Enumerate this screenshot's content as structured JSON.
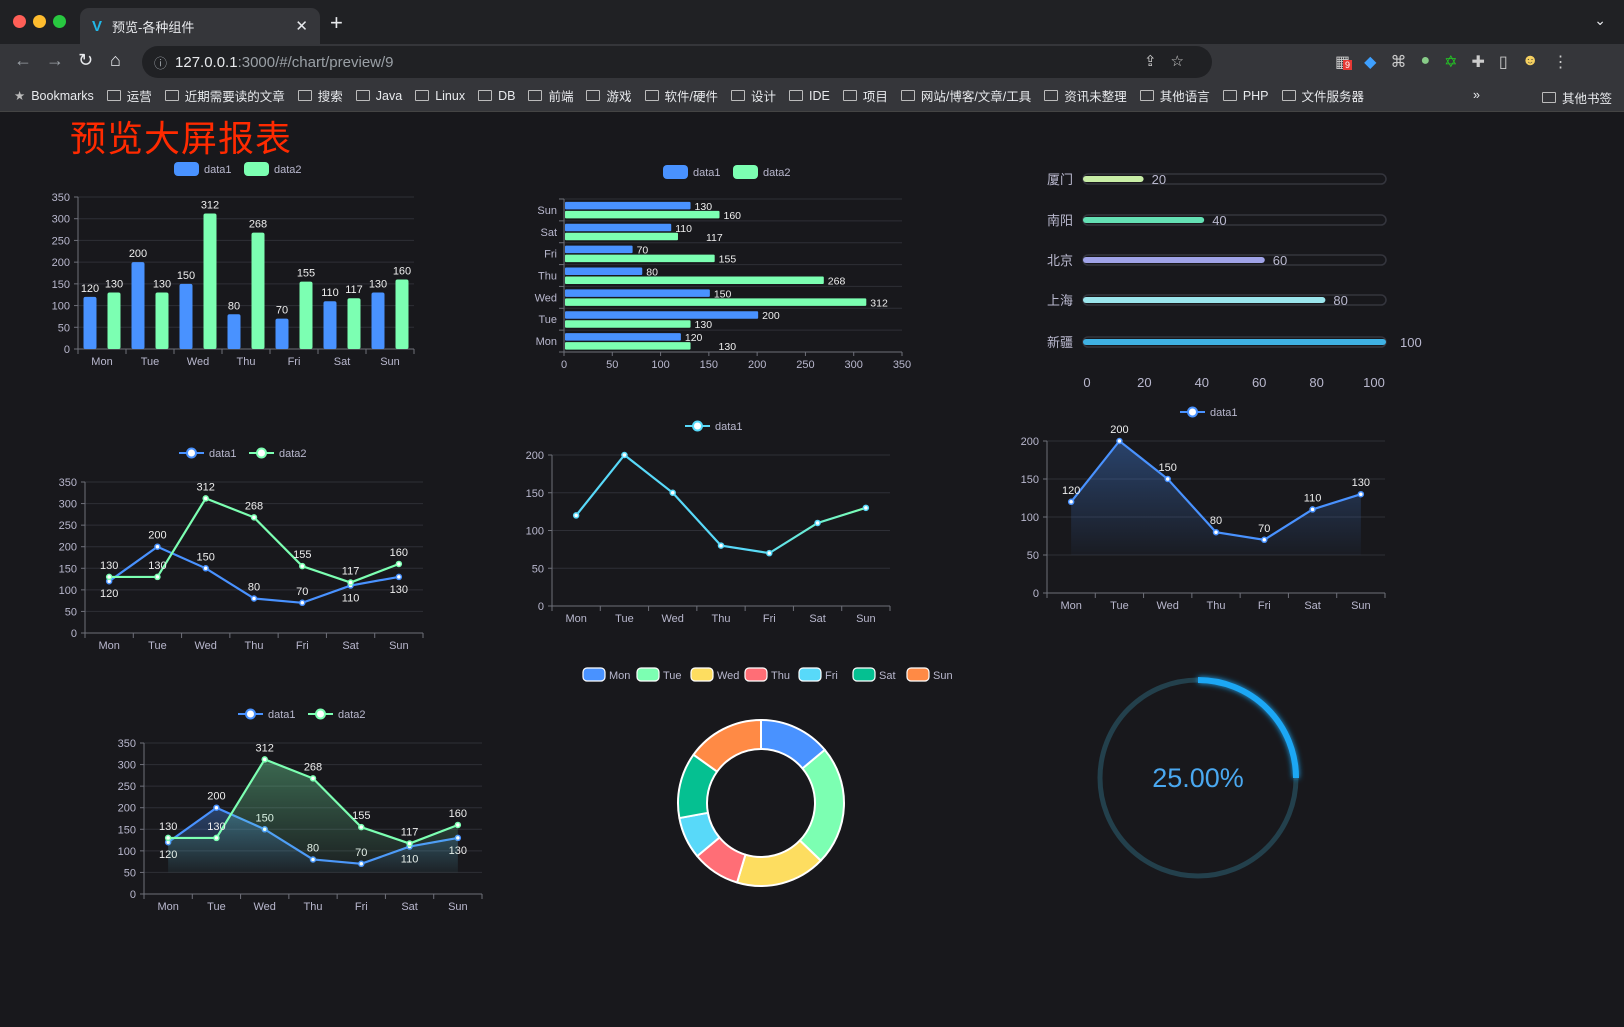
{
  "browser": {
    "tab_title": "预览-各种组件",
    "url_host": "127.0.0.1",
    "url_path": ":3000/#/chart/preview/9",
    "extension_badge": "9",
    "bookmarks": [
      "Bookmarks",
      "运营",
      "近期需要读的文章",
      "搜索",
      "Java",
      "Linux",
      "DB",
      "前端",
      "游戏",
      "软件/硬件",
      "设计",
      "IDE",
      "项目",
      "网站/博客/文章/工具",
      "资讯未整理",
      "其他语言",
      "PHP",
      "文件服务器"
    ],
    "more": "»",
    "other_bookmarks": "其他书签"
  },
  "page": {
    "title": "预览大屏报表",
    "title_color": "#ff2a00",
    "background": "#18181c"
  },
  "chart_data": [
    {
      "type": "bar",
      "categories": [
        "Mon",
        "Tue",
        "Wed",
        "Thu",
        "Fri",
        "Sat",
        "Sun"
      ],
      "ylim": [
        0,
        350
      ],
      "yticks": [
        "0",
        "50",
        "100",
        "150",
        "200",
        "250",
        "300",
        "350"
      ],
      "series": [
        {
          "name": "data1",
          "values": [
            120,
            200,
            150,
            80,
            70,
            110,
            130
          ],
          "color": "#4992ff"
        },
        {
          "name": "data2",
          "values": [
            130,
            130,
            312,
            268,
            155,
            117,
            160
          ],
          "color": "#7cffb2"
        }
      ]
    },
    {
      "type": "bar",
      "orientation": "horizontal",
      "categories": [
        "Mon",
        "Tue",
        "Wed",
        "Thu",
        "Fri",
        "Sat",
        "Sun"
      ],
      "xlim": [
        0,
        350
      ],
      "xticks": [
        "0",
        "50",
        "100",
        "150",
        "200",
        "250",
        "300",
        "350"
      ],
      "series": [
        {
          "name": "data1",
          "values": [
            120,
            200,
            150,
            80,
            70,
            110,
            130
          ],
          "color": "#4992ff"
        },
        {
          "name": "data2",
          "values": [
            130,
            130,
            312,
            268,
            155,
            117,
            160
          ],
          "color": "#7cffb2"
        }
      ]
    },
    {
      "type": "bar",
      "orientation": "horizontal",
      "categories": [
        "厦门",
        "南阳",
        "北京",
        "上海",
        "新疆"
      ],
      "values": [
        20,
        40,
        60,
        80,
        100
      ],
      "xlim": [
        0,
        100
      ],
      "xticks": [
        "0",
        "20",
        "40",
        "60",
        "80",
        "100"
      ],
      "colors": [
        "#c8eda6",
        "#64e0b4",
        "#a0a3e8",
        "#9be5ec",
        "#3fb1e3"
      ]
    },
    {
      "type": "line",
      "categories": [
        "Mon",
        "Tue",
        "Wed",
        "Thu",
        "Fri",
        "Sat",
        "Sun"
      ],
      "ylim": [
        0,
        350
      ],
      "yticks": [
        "0",
        "50",
        "100",
        "150",
        "200",
        "250",
        "300",
        "350"
      ],
      "series": [
        {
          "name": "data1",
          "values": [
            120,
            200,
            150,
            80,
            70,
            110,
            130
          ],
          "color": "#4992ff"
        },
        {
          "name": "data2",
          "values": [
            130,
            130,
            312,
            268,
            155,
            117,
            160
          ],
          "color": "#7cffb2"
        }
      ]
    },
    {
      "type": "line",
      "categories": [
        "Mon",
        "Tue",
        "Wed",
        "Thu",
        "Fri",
        "Sat",
        "Sun"
      ],
      "ylim": [
        0,
        200
      ],
      "yticks": [
        "0",
        "50",
        "100",
        "150",
        "200"
      ],
      "series": [
        {
          "name": "data1",
          "values": [
            120,
            200,
            150,
            80,
            70,
            110,
            130
          ],
          "color": "#58d9f9",
          "color_end": "#7cffb2"
        }
      ]
    },
    {
      "type": "area",
      "categories": [
        "Mon",
        "Tue",
        "Wed",
        "Thu",
        "Fri",
        "Sat",
        "Sun"
      ],
      "ylim": [
        0,
        200
      ],
      "yticks": [
        "0",
        "50",
        "100",
        "150",
        "200"
      ],
      "series": [
        {
          "name": "data1",
          "values": [
            120,
            200,
            150,
            80,
            70,
            110,
            130
          ],
          "color": "#4992ff"
        }
      ]
    },
    {
      "type": "area",
      "categories": [
        "Mon",
        "Tue",
        "Wed",
        "Thu",
        "Fri",
        "Sat",
        "Sun"
      ],
      "ylim": [
        0,
        350
      ],
      "yticks": [
        "0",
        "50",
        "100",
        "150",
        "200",
        "250",
        "300",
        "350"
      ],
      "series": [
        {
          "name": "data1",
          "values": [
            120,
            200,
            150,
            80,
            70,
            110,
            130
          ],
          "color": "#4992ff"
        },
        {
          "name": "data2",
          "values": [
            130,
            130,
            312,
            268,
            155,
            117,
            160
          ],
          "color": "#7cffb2"
        }
      ]
    },
    {
      "type": "pie",
      "variant": "donut",
      "categories": [
        "Mon",
        "Tue",
        "Wed",
        "Thu",
        "Fri",
        "Sat",
        "Sun"
      ],
      "values": [
        120,
        200,
        150,
        80,
        70,
        110,
        130
      ],
      "colors": [
        "#4992ff",
        "#7cffb2",
        "#fddd60",
        "#ff6e76",
        "#58d9f9",
        "#05c091",
        "#ff8a45"
      ]
    },
    {
      "type": "gauge",
      "value": 25,
      "label": "25.00%",
      "color": "#1ea7f5",
      "track_color": "#23404c"
    }
  ]
}
